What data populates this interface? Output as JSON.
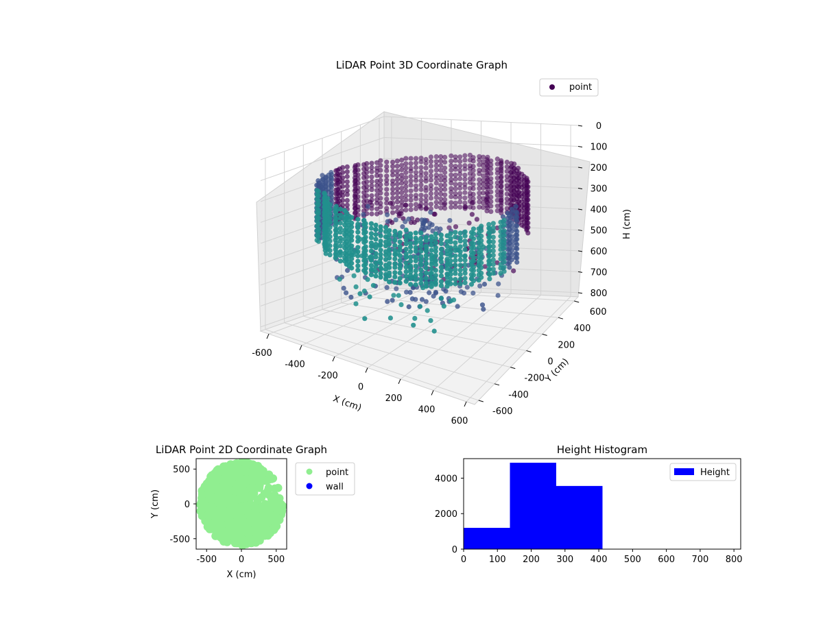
{
  "chart_data": [
    {
      "type": "scatter",
      "title": "LiDAR Point 3D Coordinate Graph",
      "xlabel": "X (cm)",
      "ylabel": "Y (cm)",
      "zlabel": "H (cm)",
      "xlim": [
        -650,
        650
      ],
      "ylim": [
        -650,
        650
      ],
      "zlim": [
        820,
        0
      ],
      "x_ticks": [
        -600,
        -400,
        -200,
        0,
        200,
        400,
        600
      ],
      "y_ticks": [
        -600,
        -400,
        -200,
        0,
        200,
        400,
        600
      ],
      "z_ticks": [
        0,
        100,
        200,
        300,
        400,
        500,
        600,
        700,
        800
      ],
      "grid": true,
      "legend": {
        "placement": "upper-right",
        "entries": [
          {
            "label": "point",
            "color": "#440154"
          }
        ]
      },
      "colormap": [
        "#440154",
        "#3b528b",
        "#21908d"
      ],
      "description": "cylindrical room point cloud, radius ~600 cm, heights ~150-400 cm",
      "approx_radius_cm": 600,
      "approx_height_range_cm": [
        150,
        400
      ]
    },
    {
      "type": "scatter",
      "title": "LiDAR Point 2D Coordinate Graph",
      "xlabel": "X (cm)",
      "ylabel": "Y (cm)",
      "xlim": [
        -650,
        650
      ],
      "ylim": [
        -650,
        650
      ],
      "x_ticks": [
        -500,
        0,
        500
      ],
      "y_ticks": [
        -500,
        0,
        500
      ],
      "legend": {
        "placement": "outside-right",
        "entries": [
          {
            "label": "point",
            "color": "#90ee90"
          },
          {
            "label": "wall",
            "color": "#0000ff"
          }
        ]
      },
      "approx_radius_cm": 600
    },
    {
      "type": "bar",
      "title": "Height Histogram",
      "xlabel": "",
      "ylabel": "",
      "bin_edges": [
        0,
        137,
        274,
        411
      ],
      "values": [
        1200,
        4870,
        3560
      ],
      "xlim": [
        0,
        820
      ],
      "ylim": [
        0,
        5100
      ],
      "x_ticks": [
        0,
        100,
        200,
        300,
        400,
        500,
        600,
        700,
        800
      ],
      "y_ticks": [
        0,
        2000,
        4000
      ],
      "legend": {
        "placement": "upper-right",
        "entries": [
          {
            "label": "Height",
            "color": "#0000ff"
          }
        ]
      }
    }
  ]
}
